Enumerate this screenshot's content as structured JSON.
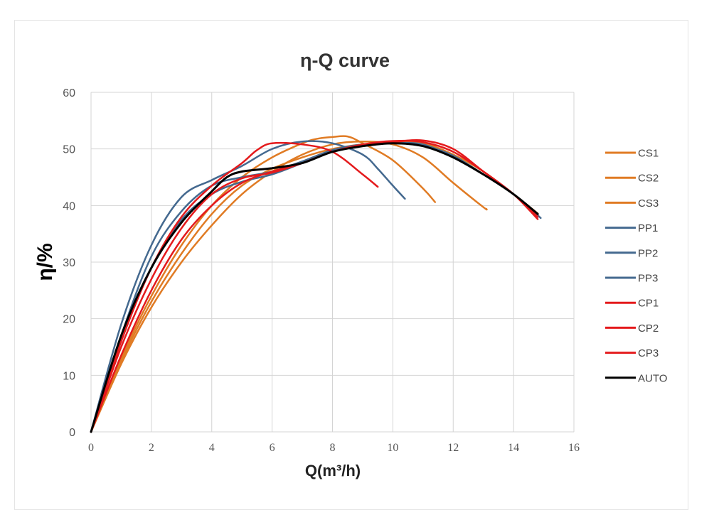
{
  "chart_data": {
    "type": "line",
    "title": "η-Q curve",
    "xlabel": "Q(m³/h)",
    "ylabel": "η/%",
    "xlim": [
      0,
      16
    ],
    "ylim": [
      0,
      60
    ],
    "xticks": [
      0,
      2,
      4,
      6,
      8,
      10,
      12,
      14,
      16
    ],
    "yticks": [
      0,
      10,
      20,
      30,
      40,
      50,
      60
    ],
    "grid": true,
    "legend_position": "right",
    "series": [
      {
        "name": "CS1",
        "color": "#e07b24",
        "x": [
          0,
          1,
          2,
          3,
          4,
          5,
          6,
          7,
          7.5,
          8,
          8.5,
          9,
          10,
          11,
          11.4
        ],
        "y": [
          0,
          13,
          24,
          33,
          40,
          45,
          48.5,
          51,
          51.8,
          52.1,
          52.2,
          51,
          48,
          43,
          40.6
        ]
      },
      {
        "name": "CS2",
        "color": "#e07b24",
        "x": [
          0,
          1,
          2,
          3,
          4,
          5,
          6,
          7,
          8,
          9,
          10,
          11,
          12,
          13,
          13.1
        ],
        "y": [
          0,
          12,
          22,
          30,
          36.5,
          42,
          46,
          49,
          50.8,
          51.3,
          50.8,
          48.5,
          44,
          39.7,
          39.4
        ]
      },
      {
        "name": "CS3",
        "color": "#e07b24",
        "x": [
          0,
          1,
          2,
          3,
          4,
          5,
          6,
          7,
          8,
          9,
          10,
          11,
          12,
          13,
          14,
          14.8
        ],
        "y": [
          0,
          12.5,
          23,
          31.5,
          38.5,
          43.5,
          46.5,
          48.5,
          50,
          50.8,
          51.2,
          51,
          49,
          46,
          42,
          38.6
        ]
      },
      {
        "name": "PP1",
        "color": "#44698f",
        "x": [
          0,
          1,
          2,
          3,
          4,
          5,
          6,
          7,
          8,
          9,
          9.5,
          10,
          10.4
        ],
        "y": [
          0,
          19,
          33,
          41.5,
          44.5,
          47,
          50,
          51.3,
          51,
          49,
          46.5,
          43.5,
          41.2
        ]
      },
      {
        "name": "PP2",
        "color": "#44698f",
        "x": [
          0,
          1,
          2,
          3,
          4,
          5,
          6,
          7,
          8,
          9,
          10,
          11,
          12,
          13,
          14,
          14.9
        ],
        "y": [
          0,
          16,
          29,
          37.5,
          42,
          44.2,
          45.5,
          47.5,
          49.5,
          50.6,
          51,
          50.8,
          48.5,
          45.5,
          42,
          37.8
        ]
      },
      {
        "name": "PP3",
        "color": "#44698f",
        "x": [
          0,
          1,
          2,
          3,
          4,
          5,
          6,
          7,
          8,
          9,
          10,
          11,
          12,
          13,
          14,
          14.85
        ],
        "y": [
          0,
          17,
          31,
          39,
          43.5,
          45,
          46,
          47.8,
          49.8,
          50.8,
          51,
          50.6,
          48.8,
          45.5,
          42,
          38
        ]
      },
      {
        "name": "CP1",
        "color": "#e41a1c",
        "x": [
          0,
          1,
          2,
          3,
          4,
          5,
          5.5,
          6,
          7,
          8,
          9,
          9.5
        ],
        "y": [
          0,
          16,
          29,
          38,
          43.5,
          47.5,
          49.8,
          51,
          50.8,
          49.5,
          45.5,
          43.3
        ]
      },
      {
        "name": "CP2",
        "color": "#e41a1c",
        "x": [
          0,
          1,
          2,
          3,
          4,
          5,
          6,
          7,
          8,
          9,
          10,
          11,
          12,
          13,
          14,
          14.8
        ],
        "y": [
          0,
          15,
          27,
          36,
          42,
          44.8,
          45.8,
          47.5,
          49.5,
          50.8,
          51.4,
          51.2,
          49.5,
          46,
          42,
          37.6
        ]
      },
      {
        "name": "CP3",
        "color": "#e41a1c",
        "x": [
          0,
          1,
          2,
          3,
          4,
          5,
          6,
          7,
          8,
          9,
          10,
          11,
          12,
          13,
          14,
          14.8
        ],
        "y": [
          0,
          13.5,
          25,
          34,
          40,
          44,
          46,
          47.5,
          49.5,
          50.6,
          51.2,
          51.5,
          50,
          46,
          42,
          38
        ]
      },
      {
        "name": "AUTO",
        "color": "#000000",
        "x": [
          0,
          1,
          2,
          3,
          4,
          4.5,
          5,
          6,
          7,
          8,
          9,
          10,
          11,
          12,
          13,
          14,
          14.8
        ],
        "y": [
          0,
          17,
          29,
          37,
          42.5,
          45,
          46,
          46.6,
          47.5,
          49.5,
          50.5,
          51,
          50.5,
          48.5,
          45.5,
          42,
          38.5
        ]
      }
    ]
  }
}
